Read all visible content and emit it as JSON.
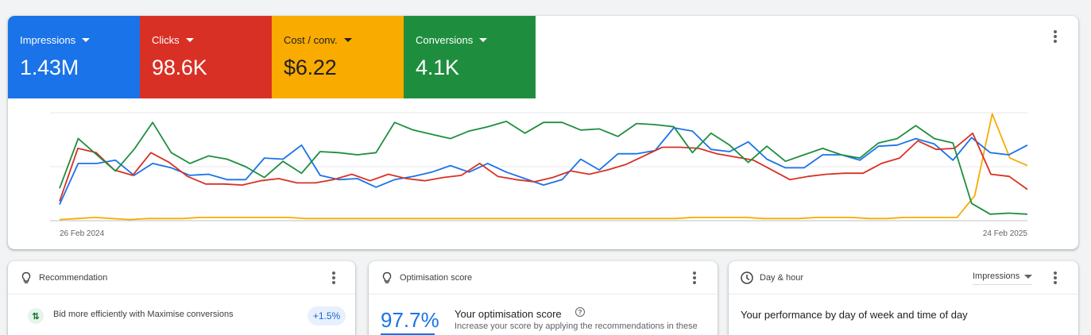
{
  "metrics": [
    {
      "label": "Impressions",
      "value": "1.43M",
      "color": "#1a73e8"
    },
    {
      "label": "Clicks",
      "value": "98.6K",
      "color": "#d93025"
    },
    {
      "label": "Cost / conv.",
      "value": "$6.22",
      "color": "#f9ab00"
    },
    {
      "label": "Conversions",
      "value": "4.1K",
      "color": "#1e8e3e"
    }
  ],
  "chart_data": {
    "type": "line",
    "x_start_label": "26 Feb 2024",
    "x_end_label": "24 Feb 2025",
    "grid": true,
    "normalized": true,
    "series": [
      {
        "name": "Impressions",
        "color": "#1a73e8",
        "values": [
          0.15,
          0.53,
          0.53,
          0.56,
          0.42,
          0.53,
          0.49,
          0.42,
          0.43,
          0.38,
          0.38,
          0.58,
          0.57,
          0.7,
          0.42,
          0.38,
          0.39,
          0.31,
          0.38,
          0.41,
          0.45,
          0.51,
          0.45,
          0.53,
          0.45,
          0.39,
          0.33,
          0.38,
          0.57,
          0.47,
          0.62,
          0.62,
          0.65,
          0.86,
          0.83,
          0.66,
          0.64,
          0.73,
          0.57,
          0.49,
          0.49,
          0.61,
          0.61,
          0.56,
          0.69,
          0.7,
          0.76,
          0.71,
          0.56,
          0.77,
          0.63,
          0.61,
          0.7
        ]
      },
      {
        "name": "Clicks",
        "color": "#d93025",
        "values": [
          0.18,
          0.67,
          0.63,
          0.47,
          0.42,
          0.63,
          0.54,
          0.41,
          0.34,
          0.34,
          0.33,
          0.37,
          0.39,
          0.35,
          0.35,
          0.38,
          0.43,
          0.37,
          0.43,
          0.39,
          0.37,
          0.4,
          0.42,
          0.53,
          0.41,
          0.38,
          0.36,
          0.4,
          0.46,
          0.43,
          0.47,
          0.52,
          0.6,
          0.68,
          0.68,
          0.67,
          0.62,
          0.59,
          0.56,
          0.47,
          0.38,
          0.41,
          0.43,
          0.44,
          0.44,
          0.53,
          0.58,
          0.74,
          0.66,
          0.67,
          0.81,
          0.43,
          0.41,
          0.29
        ]
      },
      {
        "name": "Cost / conv.",
        "color": "#f9ab00",
        "values": [
          0.01,
          0.02,
          0.03,
          0.02,
          0.01,
          0.02,
          0.02,
          0.02,
          0.03,
          0.03,
          0.03,
          0.03,
          0.03,
          0.03,
          0.02,
          0.02,
          0.02,
          0.02,
          0.02,
          0.02,
          0.02,
          0.02,
          0.02,
          0.02,
          0.02,
          0.02,
          0.02,
          0.02,
          0.02,
          0.02,
          0.02,
          0.02,
          0.02,
          0.02,
          0.02,
          0.02,
          0.03,
          0.03,
          0.03,
          0.03,
          0.02,
          0.02,
          0.02,
          0.03,
          0.03,
          0.03,
          0.02,
          0.02,
          0.03,
          0.03,
          0.03,
          0.03,
          0.23,
          0.99,
          0.58,
          0.51
        ]
      },
      {
        "name": "Conversions",
        "color": "#1e8e3e",
        "values": [
          0.3,
          0.76,
          0.61,
          0.46,
          0.66,
          0.91,
          0.63,
          0.53,
          0.6,
          0.57,
          0.5,
          0.4,
          0.55,
          0.44,
          0.64,
          0.63,
          0.61,
          0.63,
          0.91,
          0.84,
          0.8,
          0.76,
          0.83,
          0.87,
          0.92,
          0.81,
          0.91,
          0.91,
          0.84,
          0.85,
          0.78,
          0.9,
          0.89,
          0.87,
          0.63,
          0.81,
          0.7,
          0.54,
          0.69,
          0.55,
          0.61,
          0.67,
          0.61,
          0.58,
          0.72,
          0.76,
          0.88,
          0.76,
          0.72,
          0.16,
          0.06,
          0.07,
          0.06
        ]
      }
    ]
  },
  "cards": {
    "recommendation": {
      "title": "Recommendation",
      "item_text": "Bid more efficiently with Maximise conversions",
      "badge": "+1.5%"
    },
    "optimisation": {
      "title": "Optimisation score",
      "score": "97.7%",
      "heading": "Your optimisation score",
      "desc": "Increase your score by applying the recommendations in these"
    },
    "day_hour": {
      "title": "Day & hour",
      "dropdown": "Impressions",
      "text": "Your performance by day of week and time of day"
    }
  }
}
